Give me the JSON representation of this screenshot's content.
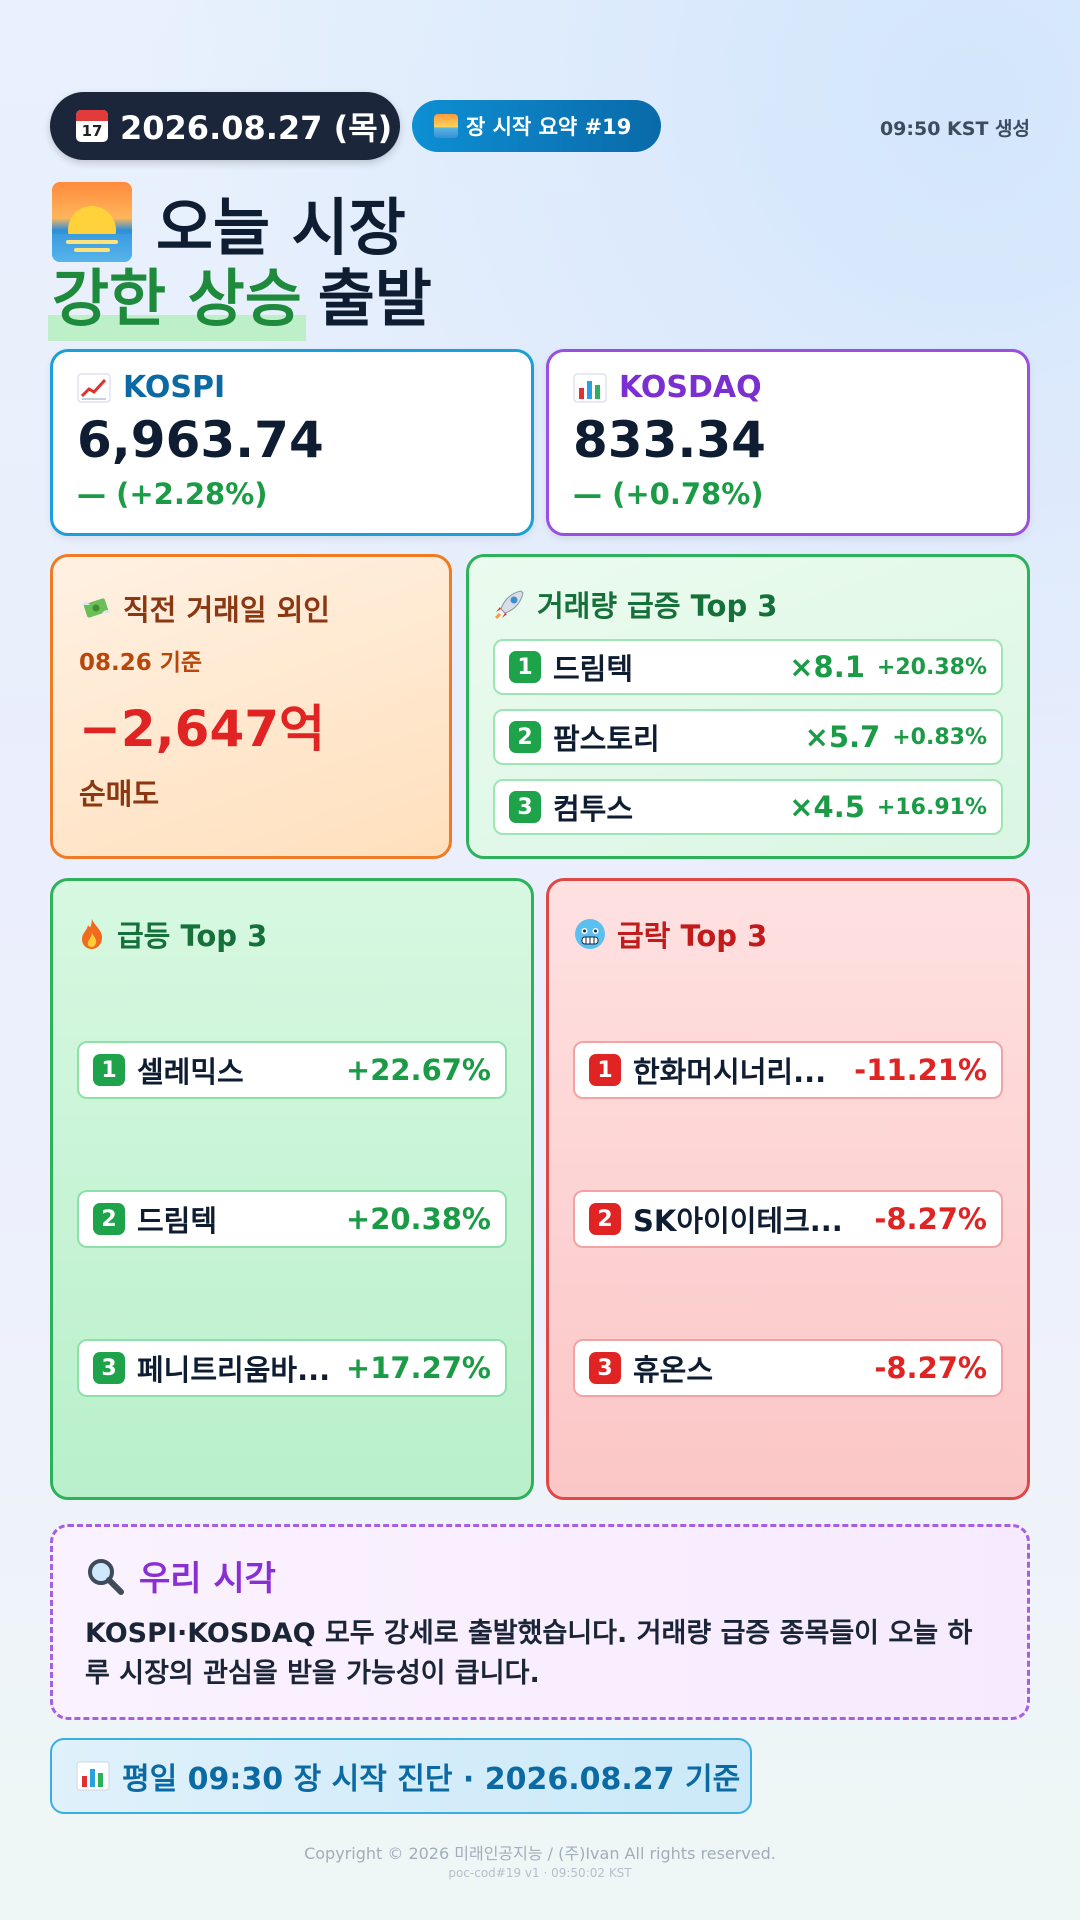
{
  "header": {
    "date": "2026.08.27 (목)",
    "summary_badge": "장 시작 요약 #19",
    "generated": "09:50 KST 생성"
  },
  "title": {
    "line1": "오늘 시장",
    "highlight": "강한 상승",
    "line2_rest": "출발"
  },
  "indices": [
    {
      "name": "KOSPI",
      "value": "6,963.74",
      "change": "— (+2.28%)",
      "color": "#1a9fd8",
      "text_color": "#0b6aa3"
    },
    {
      "name": "KOSDAQ",
      "value": "833.34",
      "change": "— (+0.78%)",
      "color": "#9b4fe0",
      "text_color": "#7c2fd0"
    }
  ],
  "foreign": {
    "title": "직전 거래일 외인",
    "date": "08.26 기준",
    "value": "−2,647억",
    "label": "순매도"
  },
  "volume": {
    "title": "거래량 급증 Top 3",
    "items": [
      {
        "rank": "1",
        "name": "드림텍",
        "mult": "×8.1",
        "pct": "+20.38%"
      },
      {
        "rank": "2",
        "name": "팜스토리",
        "mult": "×5.7",
        "pct": "+0.83%"
      },
      {
        "rank": "3",
        "name": "컴투스",
        "mult": "×4.5",
        "pct": "+16.91%"
      }
    ]
  },
  "gainers": {
    "title": "급등 Top 3",
    "items": [
      {
        "rank": "1",
        "name": "셀레믹스",
        "pct": "+22.67%"
      },
      {
        "rank": "2",
        "name": "드림텍",
        "pct": "+20.38%"
      },
      {
        "rank": "3",
        "name": "페니트리움바...",
        "pct": "+17.27%"
      }
    ]
  },
  "losers": {
    "title": "급락 Top 3",
    "items": [
      {
        "rank": "1",
        "name": "한화머시너리...",
        "pct": "-11.21%"
      },
      {
        "rank": "2",
        "name": "SK아이이테크...",
        "pct": "-8.27%"
      },
      {
        "rank": "3",
        "name": "휴온스",
        "pct": "-8.27%"
      }
    ]
  },
  "view": {
    "title": "우리 시각",
    "text": "KOSPI·KOSDAQ 모두 강세로 출발했습니다. 거래량 급증 종목들이 오늘 하루 시장의 관심을 받을 가능성이 큽니다."
  },
  "footer": {
    "diagnosis": "평일 09:30 장 시작 진단 · 2026.08.27 기준",
    "copyright": "Copyright © 2026 미래인공지능 / (주)Ivan All rights reserved.",
    "poc": "poc-cod#19 v1 · 09:50:02 KST"
  },
  "icons": {
    "calendar": "calendar-icon",
    "sunrise": "sunrise-icon",
    "chart_up": "chart-increasing-icon",
    "bar_chart": "bar-chart-icon",
    "money": "money-with-wings-icon",
    "rocket": "rocket-icon",
    "fire": "fire-icon",
    "cold": "cold-face-icon",
    "magnifier": "magnifying-glass-icon"
  }
}
